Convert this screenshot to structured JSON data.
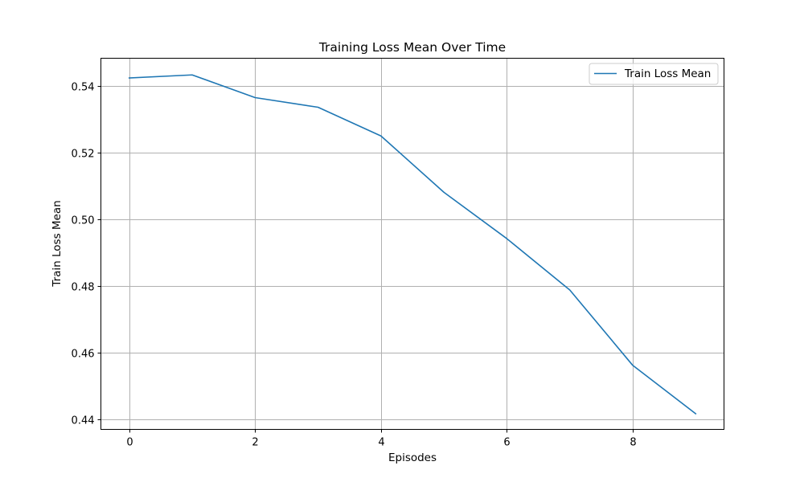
{
  "chart_data": {
    "type": "line",
    "title": "Training Loss Mean Over Time",
    "xlabel": "Episodes",
    "ylabel": "Train Loss Mean",
    "xlim": [
      -0.45,
      9.45
    ],
    "ylim": [
      0.4371,
      0.5484
    ],
    "xticks": [
      0,
      2,
      4,
      6,
      8
    ],
    "yticks": [
      0.44,
      0.46,
      0.48,
      0.5,
      0.52,
      0.54
    ],
    "ytick_labels": [
      "0.44",
      "0.46",
      "0.48",
      "0.50",
      "0.52",
      "0.54"
    ],
    "grid": true,
    "legend_position": "top-right",
    "series": [
      {
        "name": "Train Loss Mean",
        "color": "#1f77b4",
        "x": [
          0,
          1,
          2,
          3,
          4,
          5,
          6,
          7,
          8,
          9
        ],
        "values": [
          0.5425,
          0.5434,
          0.5366,
          0.5337,
          0.5251,
          0.5082,
          0.4943,
          0.4789,
          0.4563,
          0.4418
        ]
      }
    ]
  }
}
